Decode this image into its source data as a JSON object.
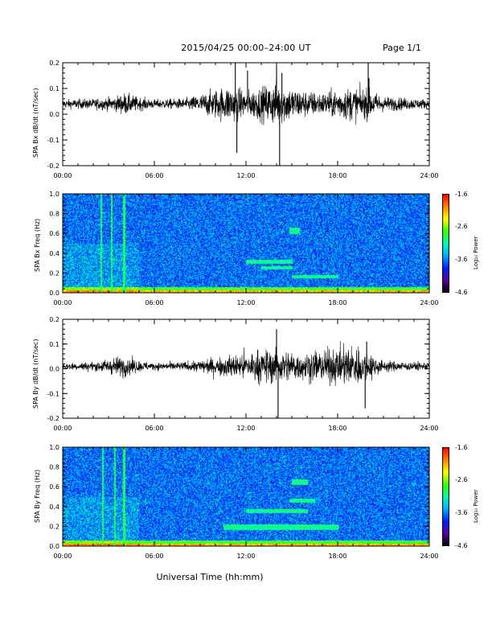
{
  "header": {
    "title": "2015/04/25  00:00–24:00 UT",
    "page": "Page 1/1"
  },
  "x_axis_label": "Universal Time (hh:mm)",
  "time_ticks": [
    "00:00",
    "06:00",
    "12:00",
    "18:00",
    "24:00"
  ],
  "colorbar": {
    "title": "Log₁₀ Power",
    "ticks": [
      "-1.6",
      "-2.6",
      "-3.6",
      "-4.6"
    ],
    "colors": [
      "#000000",
      "#5a00a0",
      "#0020ff",
      "#00b0ff",
      "#00ffb0",
      "#40ff00",
      "#ffff00",
      "#ff8000",
      "#ff0000"
    ]
  },
  "chart_data": [
    {
      "type": "line",
      "ylabel": "SPA Bx dB/dt (nT/sec)",
      "xlim": [
        0,
        24
      ],
      "ylim": [
        -0.2,
        0.2
      ],
      "yticks": [
        "-0.2",
        "-0.1",
        "0.0",
        "0.1",
        "0.2"
      ],
      "baseline": 0.04,
      "envelope": [
        [
          0,
          0.012
        ],
        [
          2,
          0.014
        ],
        [
          3.5,
          0.02
        ],
        [
          4,
          0.03
        ],
        [
          5,
          0.018
        ],
        [
          6,
          0.012
        ],
        [
          8,
          0.015
        ],
        [
          9,
          0.025
        ],
        [
          10,
          0.04
        ],
        [
          11,
          0.05
        ],
        [
          12,
          0.035
        ],
        [
          13,
          0.045
        ],
        [
          14,
          0.06
        ],
        [
          15,
          0.045
        ],
        [
          16,
          0.035
        ],
        [
          17,
          0.03
        ],
        [
          18,
          0.04
        ],
        [
          19,
          0.045
        ],
        [
          20,
          0.04
        ],
        [
          21,
          0.02
        ],
        [
          24,
          0.012
        ]
      ],
      "spikes": [
        [
          11.3,
          0.2
        ],
        [
          11.4,
          -0.15
        ],
        [
          12.1,
          0.17
        ],
        [
          14.0,
          0.19
        ],
        [
          14.2,
          -0.2
        ],
        [
          14.35,
          0.16
        ],
        [
          20.0,
          0.2
        ],
        [
          20.05,
          0.14
        ]
      ]
    },
    {
      "type": "heatmap",
      "ylabel": "SPA Bx Freq (Hz)",
      "xlim": [
        0,
        24
      ],
      "ylim": [
        0,
        1.0
      ],
      "yticks": [
        "0.0",
        "0.2",
        "0.4",
        "0.6",
        "0.8",
        "1.0"
      ],
      "zlim": [
        -4.6,
        -1.6
      ],
      "vertical_lines_hours": [
        2.5,
        3.2,
        4.0
      ],
      "bands": [
        [
          12,
          15,
          0.3,
          0.34
        ],
        [
          13,
          15,
          0.24,
          0.27
        ],
        [
          15,
          18,
          0.15,
          0.18
        ],
        [
          14.8,
          15.5,
          0.6,
          0.66
        ]
      ]
    },
    {
      "type": "line",
      "ylabel": "SPA By dB/dt (nT/sec)",
      "xlim": [
        0,
        24
      ],
      "ylim": [
        -0.2,
        0.2
      ],
      "yticks": [
        "-0.2",
        "-0.1",
        "0.0",
        "0.1",
        "0.2"
      ],
      "baseline": 0.01,
      "envelope": [
        [
          0,
          0.01
        ],
        [
          2,
          0.012
        ],
        [
          3.5,
          0.025
        ],
        [
          4,
          0.03
        ],
        [
          5,
          0.015
        ],
        [
          6,
          0.01
        ],
        [
          8,
          0.012
        ],
        [
          9,
          0.018
        ],
        [
          10,
          0.025
        ],
        [
          11,
          0.03
        ],
        [
          12,
          0.04
        ],
        [
          13,
          0.045
        ],
        [
          14,
          0.05
        ],
        [
          15,
          0.04
        ],
        [
          16,
          0.04
        ],
        [
          17,
          0.045
        ],
        [
          18,
          0.05
        ],
        [
          19,
          0.06
        ],
        [
          20,
          0.04
        ],
        [
          21,
          0.015
        ],
        [
          24,
          0.01
        ]
      ],
      "spikes": [
        [
          14.0,
          0.16
        ],
        [
          14.1,
          -0.2
        ],
        [
          19.8,
          -0.16
        ],
        [
          19.9,
          0.11
        ]
      ]
    },
    {
      "type": "heatmap",
      "ylabel": "SPA By Freq (Hz)",
      "xlim": [
        0,
        24
      ],
      "ylim": [
        0,
        1.0
      ],
      "yticks": [
        "0.0",
        "0.2",
        "0.4",
        "0.6",
        "0.8",
        "1.0"
      ],
      "zlim": [
        -4.6,
        -1.6
      ],
      "vertical_lines_hours": [
        2.6,
        3.4,
        4.0
      ],
      "bands": [
        [
          10.5,
          18,
          0.17,
          0.22
        ],
        [
          12,
          16,
          0.34,
          0.38
        ],
        [
          14.8,
          16.5,
          0.44,
          0.48
        ],
        [
          15,
          16,
          0.62,
          0.68
        ]
      ]
    }
  ]
}
